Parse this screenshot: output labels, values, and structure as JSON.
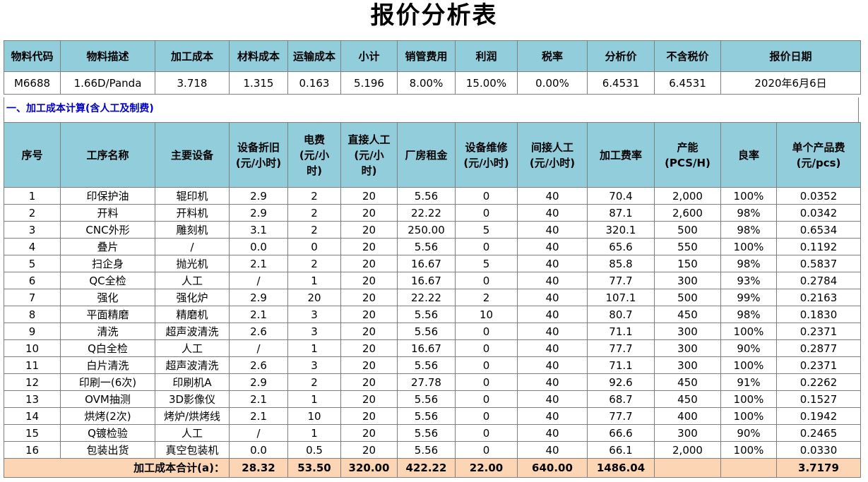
{
  "title": "报价分析表",
  "summary": {
    "headers": [
      "物料代码",
      "物料描述",
      "加工成本",
      "材料成本",
      "运输成本",
      "小计",
      "销管费用",
      "利润",
      "税率",
      "分析价",
      "不含税价",
      "报价日期"
    ],
    "values": [
      "M6688",
      "1.66D/Panda",
      "3.718",
      "1.315",
      "0.163",
      "5.196",
      "8.00%",
      "15.00%",
      "0.00%",
      "6.4531",
      "6.4531",
      "2020年6月6日"
    ]
  },
  "section_title": "一、加工成本计算(含人工及制费)",
  "detail": {
    "headers": [
      "序号",
      "工序名称",
      "主要设备",
      "设备折旧\n(元/小时)",
      "电费\n(元/小\n时)",
      "直接人工\n(元/小\n时)",
      "厂房租金",
      "设备维修\n(元/小时)",
      "间接人工\n(元/小时)",
      "加工费率",
      "产能\n(PCS/H)",
      "良率",
      "单个产品费\n(元/pcs)"
    ],
    "rows": [
      [
        "1",
        "印保护油",
        "辊印机",
        "2.9",
        "2",
        "20",
        "5.56",
        "0",
        "40",
        "70.4",
        "2,000",
        "100%",
        "0.0352"
      ],
      [
        "2",
        "开料",
        "开料机",
        "2.9",
        "2",
        "20",
        "22.22",
        "0",
        "40",
        "87.1",
        "2,600",
        "98%",
        "0.0342"
      ],
      [
        "3",
        "CNC外形",
        "雕刻机",
        "3.1",
        "2",
        "20",
        "250.00",
        "5",
        "40",
        "320.1",
        "500",
        "98%",
        "0.6534"
      ],
      [
        "4",
        "叠片",
        "/",
        "0.0",
        "0",
        "20",
        "5.56",
        "0",
        "40",
        "65.6",
        "550",
        "100%",
        "0.1192"
      ],
      [
        "5",
        "扫企身",
        "抛光机",
        "2.1",
        "2",
        "20",
        "16.67",
        "5",
        "40",
        "85.8",
        "150",
        "98%",
        "0.5837"
      ],
      [
        "6",
        "QC全检",
        "人工",
        "/",
        "1",
        "20",
        "16.67",
        "0",
        "40",
        "77.7",
        "300",
        "93%",
        "0.2784"
      ],
      [
        "7",
        "强化",
        "强化炉",
        "2.9",
        "20",
        "20",
        "22.22",
        "2",
        "40",
        "107.1",
        "500",
        "99%",
        "0.2163"
      ],
      [
        "8",
        "平面精磨",
        "精磨机",
        "2.1",
        "3",
        "20",
        "5.56",
        "10",
        "40",
        "80.7",
        "450",
        "98%",
        "0.1830"
      ],
      [
        "9",
        "清洗",
        "超声波清洗",
        "2.6",
        "3",
        "20",
        "5.56",
        "0",
        "40",
        "71.1",
        "300",
        "100%",
        "0.2371"
      ],
      [
        "10",
        "Q白全检",
        "人工",
        "/",
        "1",
        "20",
        "16.67",
        "0",
        "40",
        "77.7",
        "300",
        "90%",
        "0.2877"
      ],
      [
        "11",
        "白片清洗",
        "超声波清洗",
        "2.6",
        "3",
        "20",
        "5.56",
        "0",
        "40",
        "71.1",
        "300",
        "100%",
        "0.2371"
      ],
      [
        "12",
        "印刷一(6次)",
        "印刷机A",
        "2.9",
        "2",
        "20",
        "27.78",
        "0",
        "40",
        "92.6",
        "450",
        "91%",
        "0.2262"
      ],
      [
        "13",
        "OVM抽测",
        "3D影像仪",
        "2.1",
        "1",
        "20",
        "5.56",
        "0",
        "40",
        "68.7",
        "450",
        "100%",
        "0.1527"
      ],
      [
        "14",
        "烘烤(2次)",
        "烤炉/烘烤线",
        "2.1",
        "10",
        "20",
        "5.56",
        "0",
        "40",
        "77.7",
        "400",
        "100%",
        "0.1942"
      ],
      [
        "15",
        "Q镀检验",
        "人工",
        "/",
        "1",
        "20",
        "5.56",
        "0",
        "40",
        "66.6",
        "300",
        "90%",
        "0.2465"
      ],
      [
        "16",
        "包装出货",
        "真空包装机",
        "0.0",
        "0.5",
        "20",
        "5.56",
        "0",
        "40",
        "66.1",
        "2,000",
        "100%",
        "0.0330"
      ]
    ],
    "total": {
      "label": "加工成本合计(a)：",
      "values": [
        "28.32",
        "53.50",
        "320.00",
        "422.22",
        "22.00",
        "640.00",
        "1486.04",
        "",
        "",
        "3.7179"
      ]
    }
  }
}
